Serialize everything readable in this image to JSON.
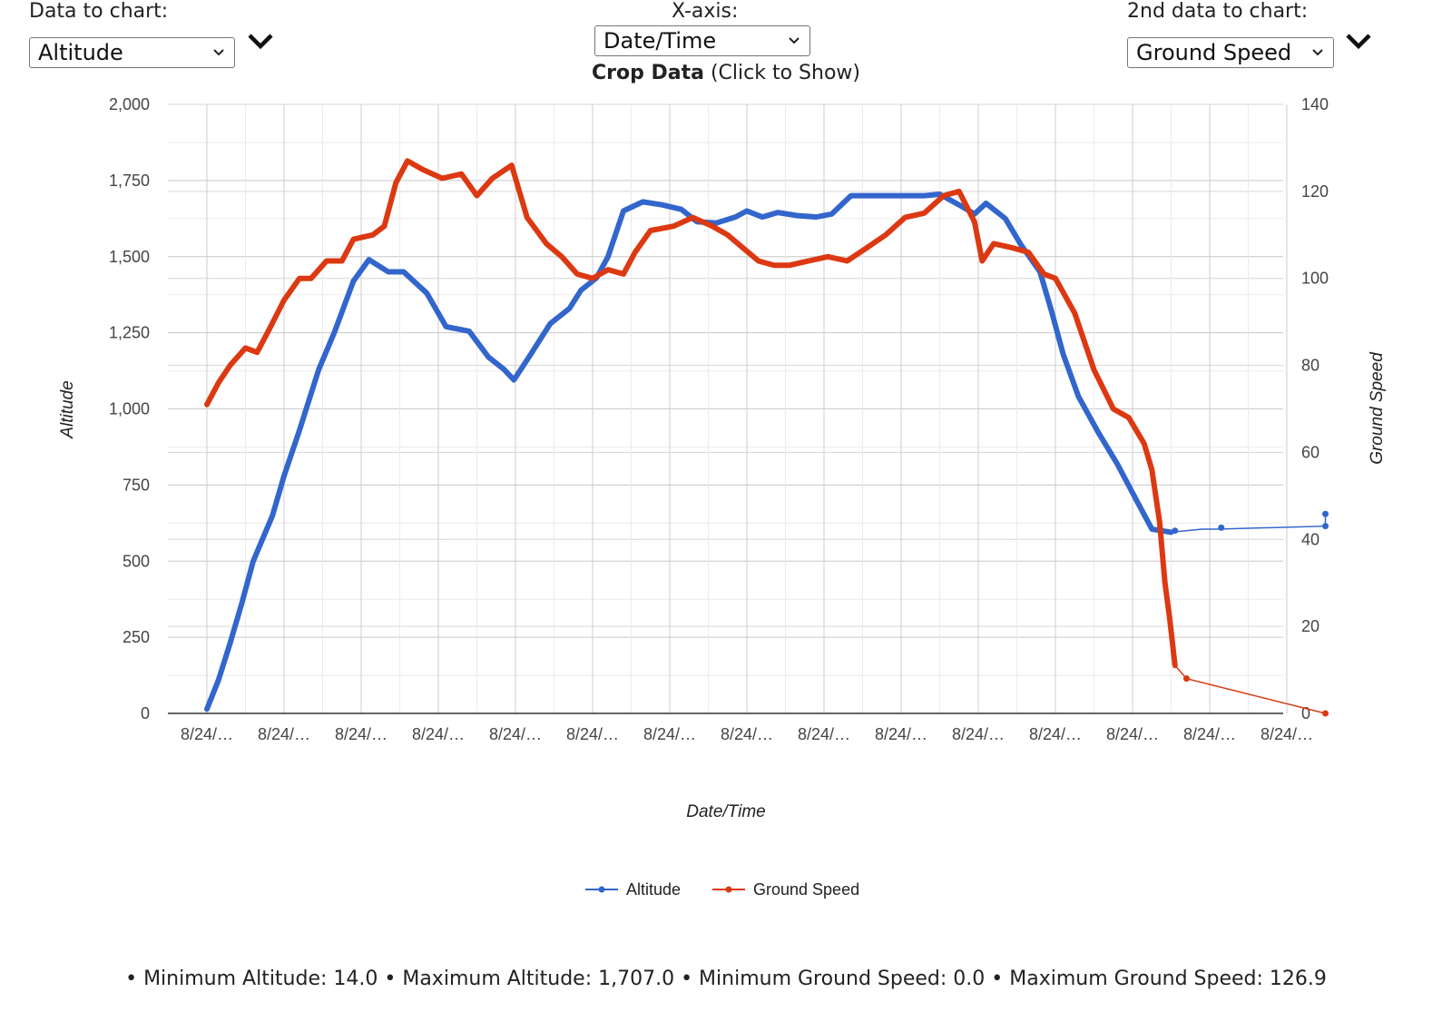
{
  "controls": {
    "data_label": "Data to chart:",
    "data_value": "Altitude",
    "x_axis_label": "X-axis:",
    "x_axis_value": "Date/Time",
    "second_label": "2nd data to chart:",
    "second_value": "Ground Speed",
    "crop_bold": "Crop Data",
    "crop_rest": " (Click to Show)"
  },
  "stats_line": "• Minimum Altitude: 14.0 • Maximum Altitude: 1,707.0 • Minimum Ground Speed: 0.0 • Maximum Ground Speed: 126.9",
  "chart_data": {
    "type": "line",
    "xlabel": "Date/Time",
    "ylabel": "Altitude",
    "y2label": "Ground Speed",
    "ylim": [
      0,
      2000
    ],
    "y2lim": [
      0,
      140
    ],
    "yticks": [
      "0",
      "250",
      "500",
      "750",
      "1,000",
      "1,250",
      "1,500",
      "1,750",
      "2,000"
    ],
    "y2ticks": [
      "0",
      "20",
      "40",
      "60",
      "80",
      "100",
      "120",
      "140"
    ],
    "xticks": [
      "8/24/…",
      "8/24/…",
      "8/24/…",
      "8/24/…",
      "8/24/…",
      "8/24/…",
      "8/24/…",
      "8/24/…",
      "8/24/…",
      "8/24/…",
      "8/24/…",
      "8/24/…",
      "8/24/…",
      "8/24/…",
      "8/24/…"
    ],
    "xlim": [
      0,
      14.5
    ],
    "grid": true,
    "legend": "bottom",
    "series": [
      {
        "name": "Altitude",
        "color": "#3366cc",
        "axis": "left",
        "points": [
          [
            0,
            14
          ],
          [
            0.15,
            110
          ],
          [
            0.3,
            230
          ],
          [
            0.45,
            360
          ],
          [
            0.6,
            500
          ],
          [
            0.85,
            650
          ],
          [
            1.0,
            780
          ],
          [
            1.2,
            930
          ],
          [
            1.45,
            1130
          ],
          [
            1.65,
            1250
          ],
          [
            1.9,
            1420
          ],
          [
            2.1,
            1490
          ],
          [
            2.35,
            1450
          ],
          [
            2.55,
            1450
          ],
          [
            2.85,
            1380
          ],
          [
            3.1,
            1270
          ],
          [
            3.4,
            1255
          ],
          [
            3.65,
            1170
          ],
          [
            3.85,
            1130
          ],
          [
            3.98,
            1095
          ],
          [
            4.2,
            1180
          ],
          [
            4.45,
            1280
          ],
          [
            4.7,
            1330
          ],
          [
            4.85,
            1390
          ],
          [
            5.05,
            1430
          ],
          [
            5.2,
            1500
          ],
          [
            5.4,
            1650
          ],
          [
            5.65,
            1680
          ],
          [
            5.9,
            1670
          ],
          [
            6.15,
            1655
          ],
          [
            6.35,
            1615
          ],
          [
            6.6,
            1610
          ],
          [
            6.85,
            1630
          ],
          [
            7.0,
            1650
          ],
          [
            7.2,
            1630
          ],
          [
            7.4,
            1645
          ],
          [
            7.65,
            1635
          ],
          [
            7.9,
            1630
          ],
          [
            8.1,
            1640
          ],
          [
            8.35,
            1700
          ],
          [
            8.65,
            1700
          ],
          [
            8.95,
            1700
          ],
          [
            9.3,
            1700
          ],
          [
            9.5,
            1705
          ],
          [
            9.75,
            1670
          ],
          [
            9.95,
            1640
          ],
          [
            10.1,
            1675
          ],
          [
            10.35,
            1625
          ],
          [
            10.55,
            1540
          ],
          [
            10.8,
            1450
          ],
          [
            10.95,
            1320
          ],
          [
            11.1,
            1180
          ],
          [
            11.3,
            1040
          ],
          [
            11.55,
            925
          ],
          [
            11.8,
            820
          ],
          [
            12.05,
            700
          ],
          [
            12.25,
            605
          ],
          [
            12.5,
            595
          ],
          [
            12.9,
            605
          ],
          [
            13.1,
            605
          ],
          [
            14.5,
            615
          ],
          [
            14.5,
            655
          ]
        ],
        "markers": [
          [
            12.55,
            600
          ],
          [
            13.15,
            610
          ],
          [
            14.5,
            615
          ],
          [
            14.5,
            655
          ]
        ]
      },
      {
        "name": "Ground Speed",
        "color": "#dc3912",
        "axis": "right",
        "points": [
          [
            0,
            71
          ],
          [
            0.15,
            76
          ],
          [
            0.3,
            80
          ],
          [
            0.5,
            84
          ],
          [
            0.65,
            83
          ],
          [
            0.8,
            88
          ],
          [
            1.0,
            95
          ],
          [
            1.2,
            100
          ],
          [
            1.35,
            100
          ],
          [
            1.55,
            104
          ],
          [
            1.75,
            104
          ],
          [
            1.9,
            109
          ],
          [
            2.15,
            110
          ],
          [
            2.3,
            112
          ],
          [
            2.45,
            122
          ],
          [
            2.6,
            127
          ],
          [
            2.8,
            125
          ],
          [
            3.05,
            123
          ],
          [
            3.3,
            124
          ],
          [
            3.5,
            119
          ],
          [
            3.7,
            123
          ],
          [
            3.95,
            126
          ],
          [
            4.15,
            114
          ],
          [
            4.4,
            108
          ],
          [
            4.6,
            105
          ],
          [
            4.8,
            101
          ],
          [
            5.0,
            100
          ],
          [
            5.2,
            102
          ],
          [
            5.4,
            101
          ],
          [
            5.55,
            106
          ],
          [
            5.75,
            111
          ],
          [
            6.05,
            112
          ],
          [
            6.3,
            114
          ],
          [
            6.55,
            112
          ],
          [
            6.75,
            110
          ],
          [
            6.95,
            107
          ],
          [
            7.15,
            104
          ],
          [
            7.35,
            103
          ],
          [
            7.55,
            103
          ],
          [
            7.8,
            104
          ],
          [
            8.05,
            105
          ],
          [
            8.3,
            104
          ],
          [
            8.55,
            107
          ],
          [
            8.8,
            110
          ],
          [
            9.05,
            114
          ],
          [
            9.3,
            115
          ],
          [
            9.55,
            119
          ],
          [
            9.75,
            120
          ],
          [
            9.95,
            113
          ],
          [
            10.05,
            104
          ],
          [
            10.2,
            108
          ],
          [
            10.45,
            107
          ],
          [
            10.65,
            106
          ],
          [
            10.85,
            101
          ],
          [
            11.0,
            100
          ],
          [
            11.25,
            92
          ],
          [
            11.5,
            79
          ],
          [
            11.75,
            70
          ],
          [
            11.95,
            68
          ],
          [
            12.15,
            62
          ],
          [
            12.25,
            56
          ],
          [
            12.35,
            44
          ],
          [
            12.42,
            30
          ],
          [
            12.48,
            22
          ],
          [
            12.55,
            11
          ],
          [
            12.7,
            8
          ],
          [
            14.5,
            0
          ]
        ],
        "markers": [
          [
            12.7,
            8
          ],
          [
            14.5,
            0
          ]
        ]
      }
    ]
  }
}
